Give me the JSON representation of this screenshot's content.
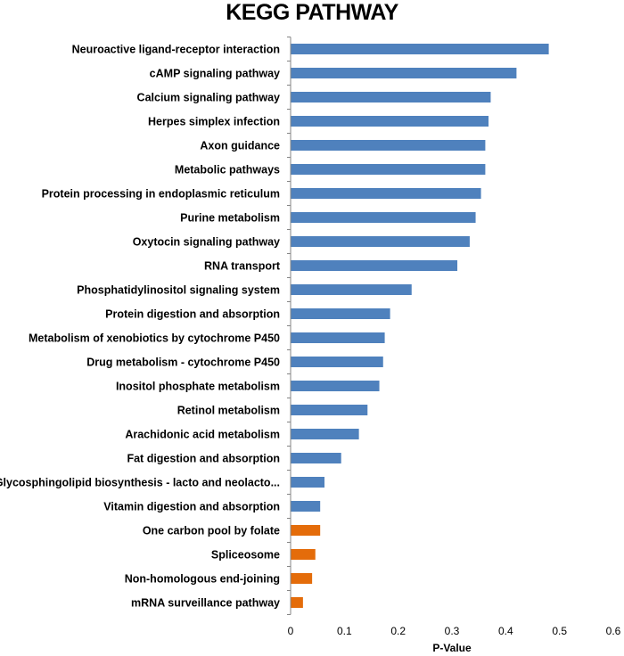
{
  "chart_data": {
    "type": "bar",
    "orientation": "horizontal",
    "title": "KEGG PATHWAY",
    "xlabel": "P-Value",
    "ylabel": "",
    "xlim": [
      0,
      0.6
    ],
    "xticks": [
      "0",
      "0.1",
      "0.2",
      "0.3",
      "0.4",
      "0.5",
      "0.6"
    ],
    "categories": [
      "Neuroactive ligand-receptor interaction",
      "cAMP signaling pathway",
      "Calcium signaling pathway",
      "Herpes simplex infection",
      "Axon guidance",
      "Metabolic pathways",
      "Protein processing in endoplasmic reticulum",
      "Purine metabolism",
      "Oxytocin signaling pathway",
      "RNA transport",
      "Phosphatidylinositol signaling system",
      "Protein digestion and absorption",
      "Metabolism of xenobiotics by cytochrome P450",
      "Drug metabolism - cytochrome P450",
      "Inositol phosphate metabolism",
      "Retinol metabolism",
      "Arachidonic acid metabolism",
      "Fat digestion and absorption",
      "Glycosphingolipid biosynthesis - lacto and neolacto...",
      "Vitamin digestion and absorption",
      "One carbon pool by folate",
      "Spliceosome",
      "Non-homologous end-joining",
      "mRNA surveillance pathway"
    ],
    "values": [
      0.48,
      0.42,
      0.372,
      0.368,
      0.362,
      0.362,
      0.354,
      0.344,
      0.333,
      0.31,
      0.225,
      0.185,
      0.175,
      0.172,
      0.165,
      0.143,
      0.127,
      0.094,
      0.063,
      0.055,
      0.055,
      0.046,
      0.04,
      0.023
    ],
    "colors": [
      "#4f81bd",
      "#4f81bd",
      "#4f81bd",
      "#4f81bd",
      "#4f81bd",
      "#4f81bd",
      "#4f81bd",
      "#4f81bd",
      "#4f81bd",
      "#4f81bd",
      "#4f81bd",
      "#4f81bd",
      "#4f81bd",
      "#4f81bd",
      "#4f81bd",
      "#4f81bd",
      "#4f81bd",
      "#4f81bd",
      "#4f81bd",
      "#4f81bd",
      "#e46c0a",
      "#e46c0a",
      "#e46c0a",
      "#e46c0a"
    ],
    "grid": false,
    "legend": "none"
  },
  "colors": {
    "blue_bar": "#4f81bd",
    "orange_bar": "#e46c0a",
    "axis": "#868686"
  }
}
